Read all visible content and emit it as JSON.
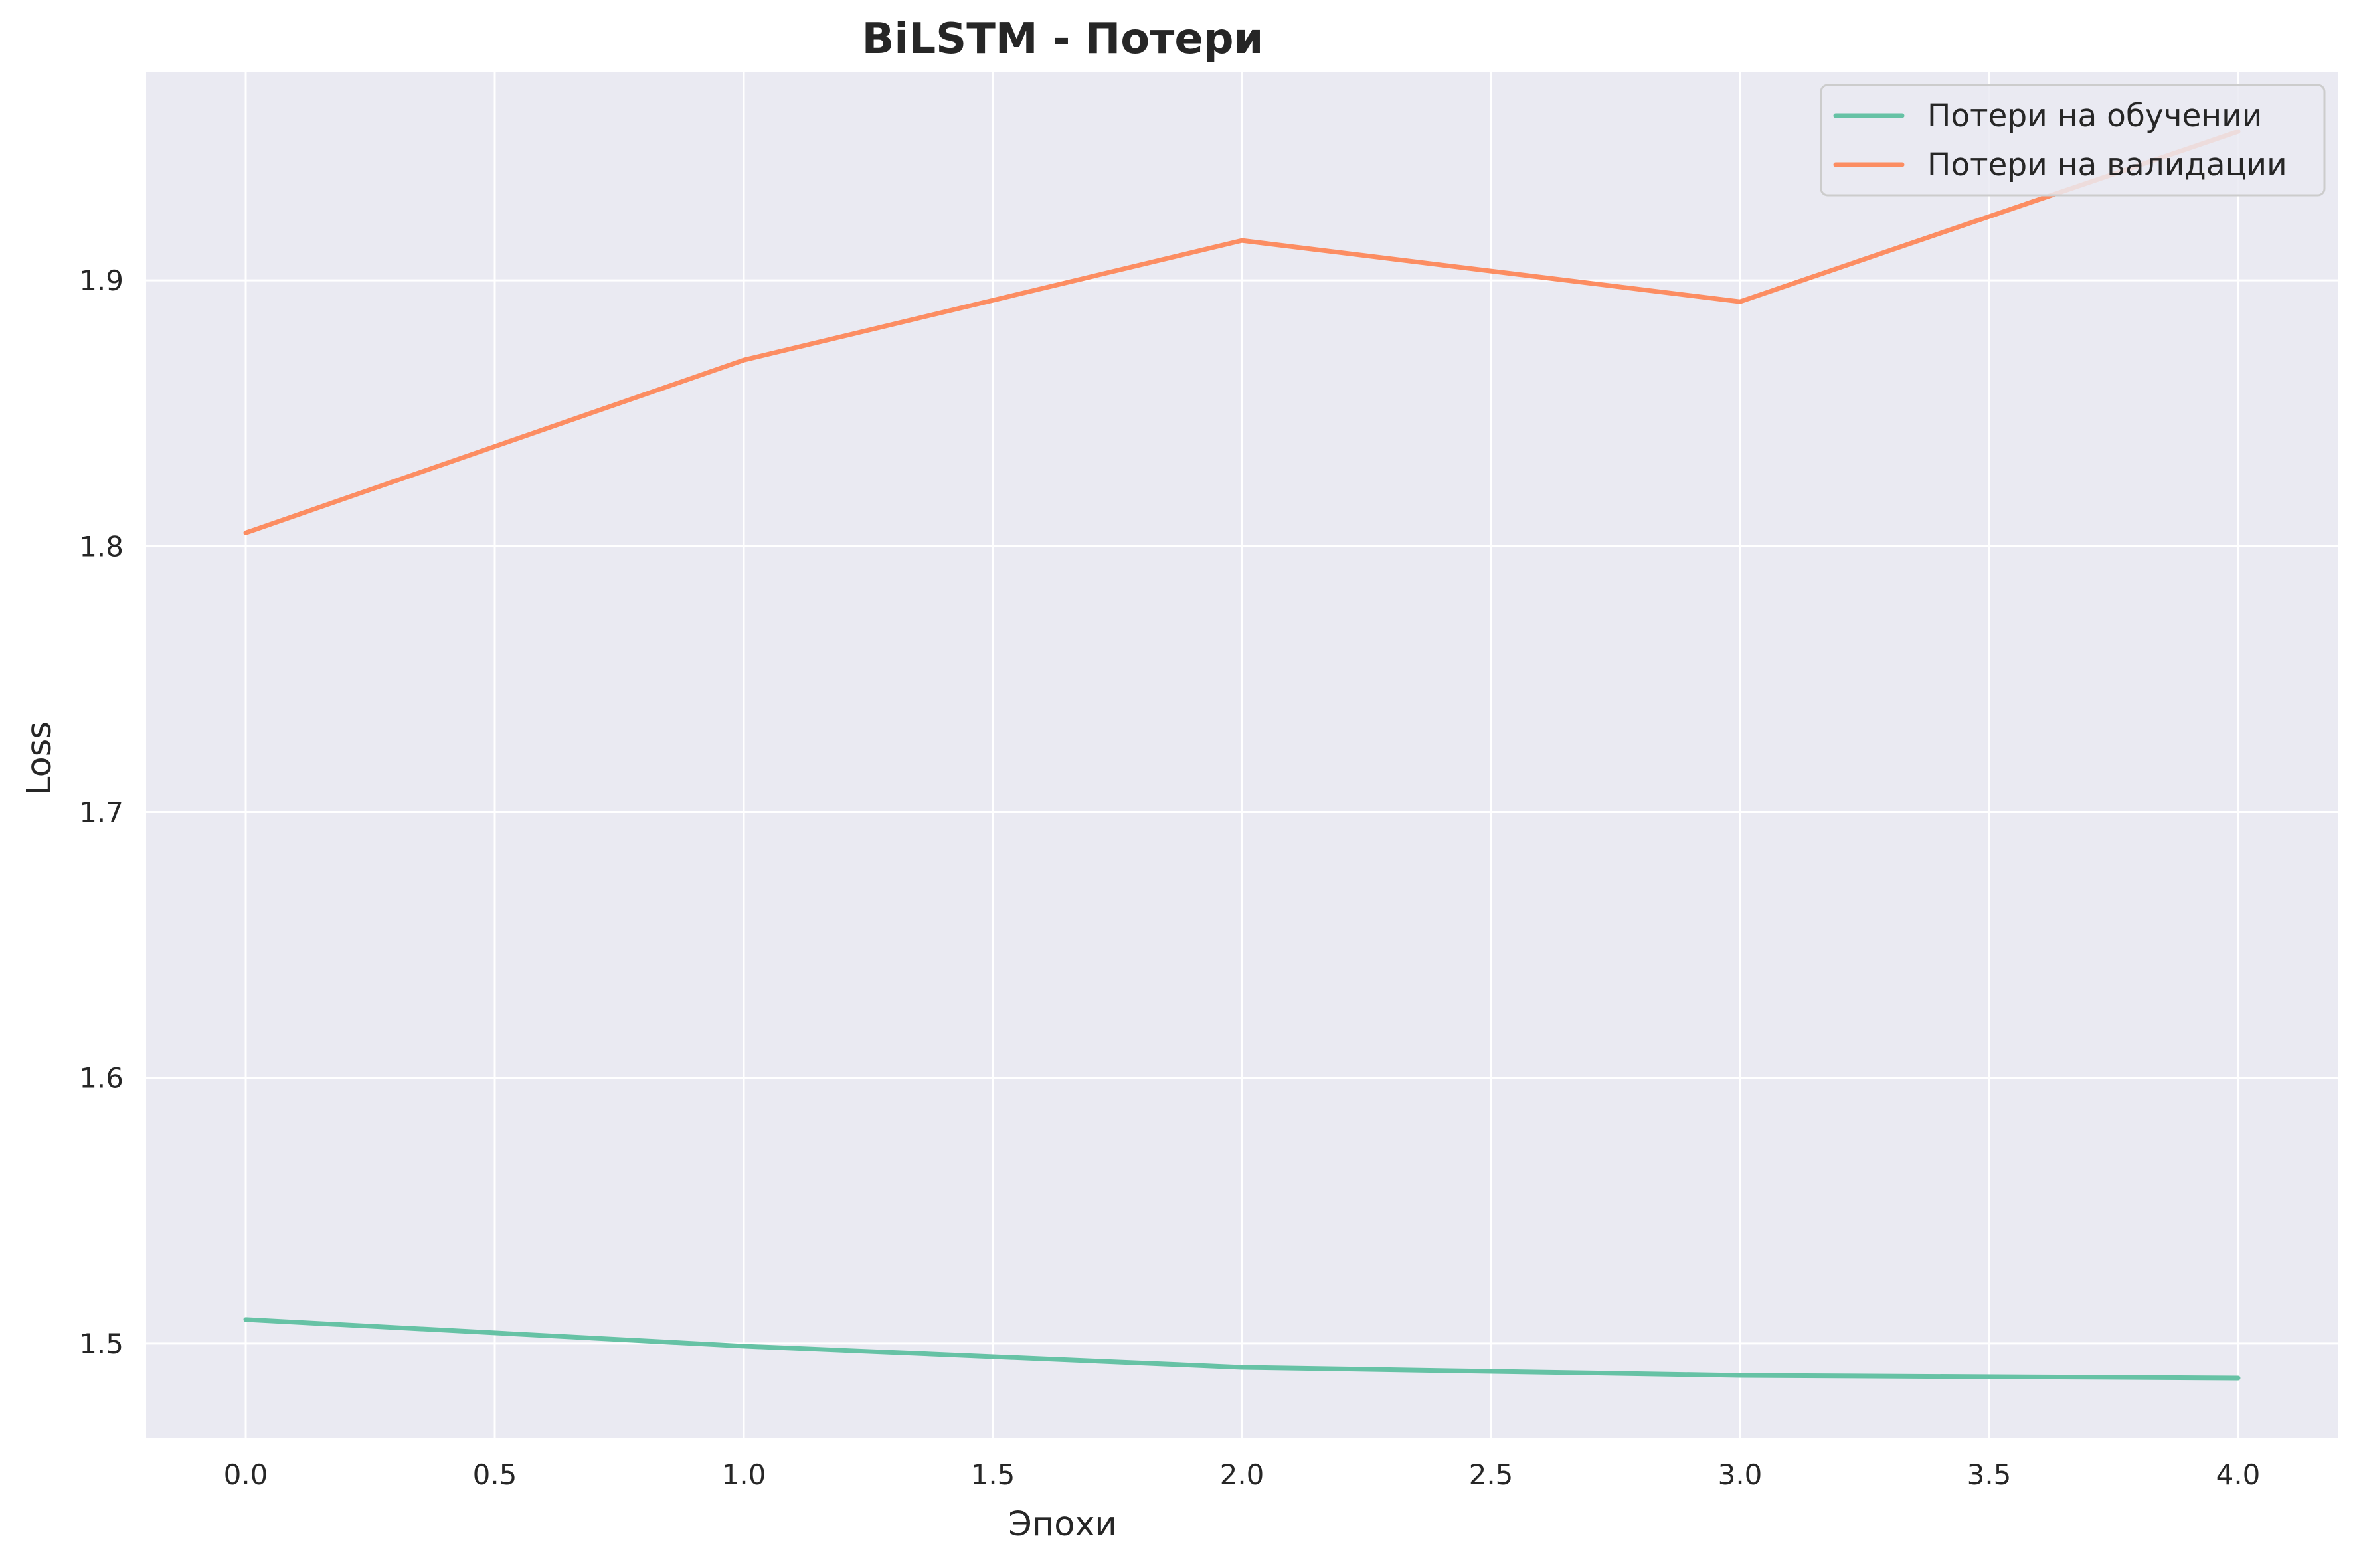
{
  "chart_data": {
    "type": "line",
    "title": "BiLSTM - Потери",
    "xlabel": "Эпохи",
    "ylabel": "Loss",
    "x": [
      0,
      1,
      2,
      3,
      4
    ],
    "series": [
      {
        "name": "Потери на обучении",
        "color": "#66c2a5",
        "values": [
          1.509,
          1.499,
          1.491,
          1.488,
          1.487
        ]
      },
      {
        "name": "Потери на валидации",
        "color": "#fc8d62",
        "values": [
          1.805,
          1.87,
          1.915,
          1.892,
          1.956
        ]
      }
    ],
    "xlim": [
      -0.2,
      4.2
    ],
    "ylim": [
      1.4645,
      1.9785
    ],
    "xticks": [
      "0.0",
      "0.5",
      "1.0",
      "1.5",
      "2.0",
      "2.5",
      "3.0",
      "3.5",
      "4.0"
    ],
    "yticks": [
      "1.5",
      "1.6",
      "1.7",
      "1.8",
      "1.9"
    ],
    "grid": true,
    "legend_position": "top-right",
    "background_color": "#eaeaf2",
    "grid_color": "#ffffff"
  }
}
